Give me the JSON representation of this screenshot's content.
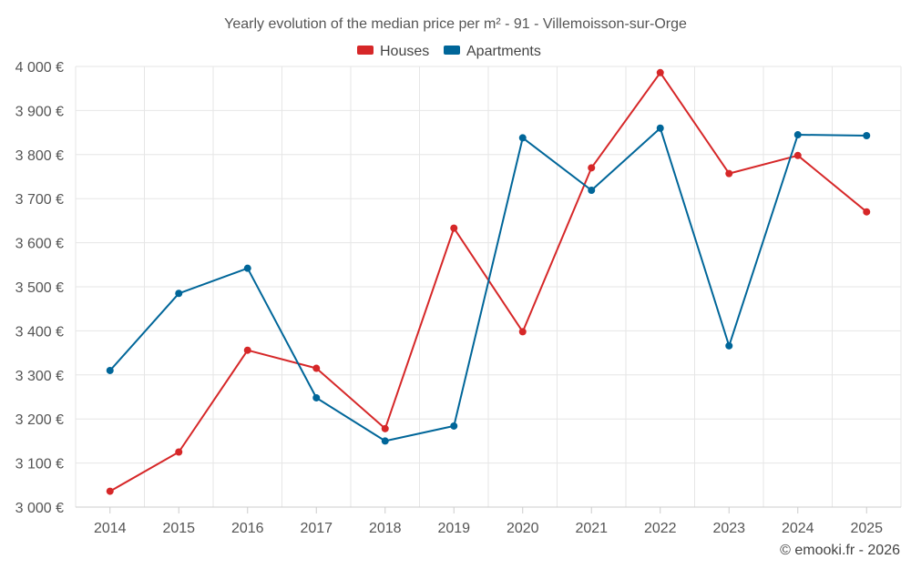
{
  "chart_data": {
    "type": "line",
    "title": "Yearly evolution of the median price per m² - 91 - Villemoisson-sur-Orge",
    "xlabel": "",
    "ylabel": "",
    "categories": [
      "2014",
      "2015",
      "2016",
      "2017",
      "2018",
      "2019",
      "2020",
      "2021",
      "2022",
      "2023",
      "2024",
      "2025"
    ],
    "ylim": [
      3000,
      4000
    ],
    "yticks": [
      3000,
      3100,
      3200,
      3300,
      3400,
      3500,
      3600,
      3700,
      3800,
      3900,
      4000
    ],
    "ytick_labels": [
      "3 000 €",
      "3 100 €",
      "3 200 €",
      "3 300 €",
      "3 400 €",
      "3 500 €",
      "3 600 €",
      "3 700 €",
      "3 800 €",
      "3 900 €",
      "4 000 €"
    ],
    "legend_position": "top",
    "grid": true,
    "series": [
      {
        "name": "Houses",
        "color": "#d62728",
        "values": [
          3036,
          3125,
          3356,
          3315,
          3178,
          3633,
          3398,
          3770,
          3986,
          3757,
          3798,
          3670
        ]
      },
      {
        "name": "Apartments",
        "color": "#006699",
        "values": [
          3310,
          3485,
          3542,
          3248,
          3150,
          3184,
          3838,
          3719,
          3860,
          3366,
          3845,
          3843
        ]
      }
    ],
    "credit": "© emooki.fr - 2026"
  }
}
